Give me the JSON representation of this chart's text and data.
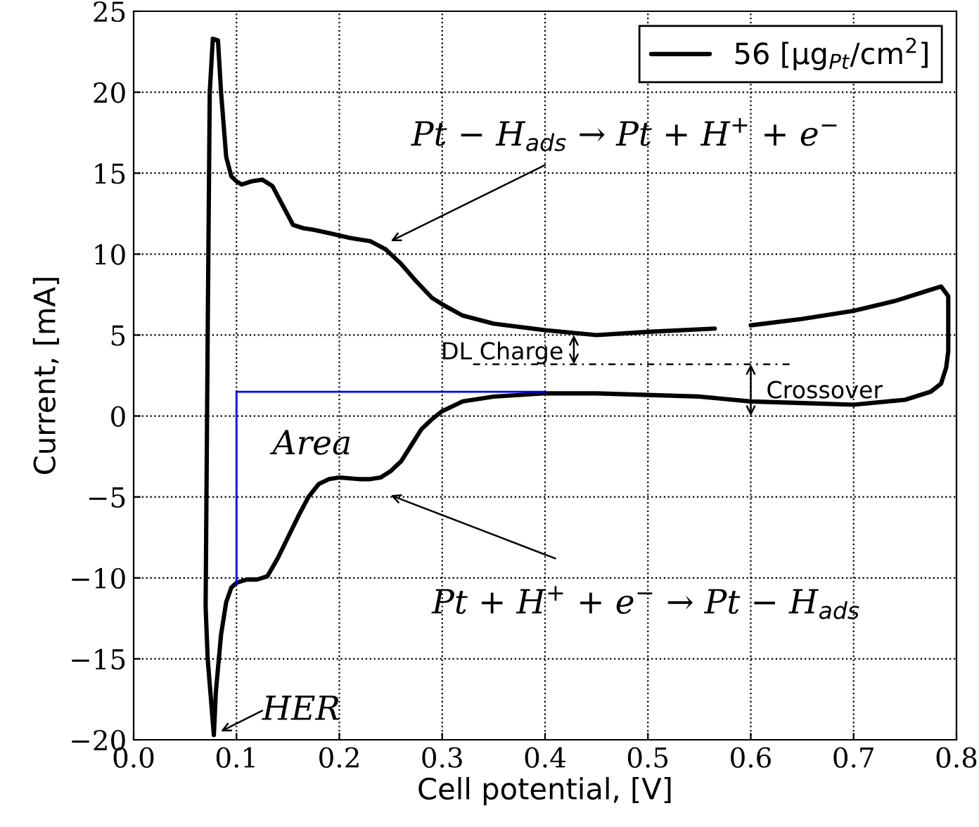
{
  "chart_data": {
    "type": "line",
    "xlabel": "Cell potential, [V]",
    "ylabel": "Current, [mA]",
    "xlim": [
      0,
      0.8
    ],
    "ylim": [
      -20,
      25
    ],
    "xticks": [
      {
        "value": 0,
        "label": "0.0"
      },
      0.1,
      0.2,
      0.3,
      0.4,
      0.5,
      0.6,
      0.7,
      0.8
    ],
    "yticks": [
      {
        "value": -20,
        "label": "−20"
      },
      {
        "value": -15,
        "label": "−15"
      },
      {
        "value": -10,
        "label": "−10"
      },
      {
        "value": -5,
        "label": "−5"
      },
      0,
      5,
      10,
      15,
      20,
      25
    ],
    "grid": true,
    "legend": "top right",
    "line_style": "solid",
    "marker": "none",
    "series": [
      {
        "name": "56 [μg$_{Pt}$/cm$^{2}$]",
        "color": "#000000",
        "x": [
          0.078,
          0.072,
          0.07,
          0.072,
          0.074,
          0.077,
          0.082,
          0.085,
          0.09,
          0.095,
          0.1,
          0.105,
          0.115,
          0.125,
          0.135,
          0.145,
          0.155,
          0.165,
          0.175,
          0.19,
          0.21,
          0.23,
          0.245,
          0.26,
          0.275,
          0.29,
          0.3,
          0.32,
          0.35,
          0.4,
          0.45,
          0.5,
          0.565,
          0.57,
          0.6,
          0.65,
          0.7,
          0.74,
          0.77,
          0.785,
          0.792,
          0.792,
          0.79,
          0.785,
          0.775,
          0.75,
          0.7,
          0.65,
          0.6,
          0.55,
          0.5,
          0.45,
          0.4,
          0.35,
          0.32,
          0.3,
          0.29,
          0.28,
          0.27,
          0.26,
          0.25,
          0.24,
          0.23,
          0.22,
          0.2,
          0.19,
          0.18,
          0.17,
          0.16,
          0.15,
          0.14,
          0.13,
          0.12,
          0.11,
          0.1,
          0.095,
          0.09,
          0.085,
          0.08,
          0.078
        ],
        "values": [
          -19.7,
          -15,
          -11.8,
          5,
          20,
          23.3,
          23.2,
          20,
          16,
          14.8,
          14.5,
          14.3,
          14.5,
          14.6,
          14.2,
          13,
          11.8,
          11.6,
          11.5,
          11.3,
          11.0,
          10.8,
          10.3,
          9.4,
          8.3,
          7.3,
          6.9,
          6.2,
          5.7,
          5.3,
          5.0,
          5.2,
          5.4,
          null,
          5.6,
          6.0,
          6.5,
          7.1,
          7.7,
          8.0,
          7.4,
          4.0,
          3.0,
          2.0,
          1.5,
          1.0,
          0.7,
          0.8,
          0.9,
          1.2,
          1.3,
          1.4,
          1.4,
          1.2,
          0.9,
          0.3,
          -0.2,
          -0.8,
          -1.8,
          -2.8,
          -3.4,
          -3.8,
          -3.9,
          -3.9,
          -3.8,
          -3.9,
          -4.2,
          -5.0,
          -6.2,
          -7.5,
          -8.8,
          -9.9,
          -10.1,
          -10.1,
          -10.3,
          -10.6,
          -11.5,
          -13.5,
          -17,
          -19.7
        ]
      },
      {
        "color": "#0000ff",
        "x": [
          0.1,
          0.1,
          0.4
        ],
        "values": [
          -10.4,
          1.5,
          1.5
        ]
      },
      {
        "color": "#000000",
        "line_style": "dashed",
        "x": [
          0.33,
          0.64
        ],
        "values": [
          3.2,
          3.2
        ]
      }
    ],
    "annotations": [
      "Pt − H$_{ads}$ → Pt + H$^{+}$ + e$^{−}$",
      "Pt + H$^{+}$ + e$^{−}$ → Pt − H$_{ads}$",
      {
        "text": "HER",
        "x": 0.078,
        "y": -19.7
      },
      "Area",
      "DL Charge",
      "Crossover"
    ]
  }
}
